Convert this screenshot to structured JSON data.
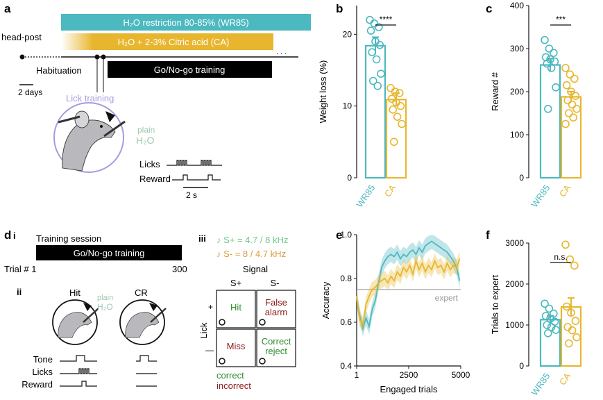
{
  "panel_a": {
    "label": "a",
    "bar_wr85": "H₂O restriction 80-85% (WR85)",
    "bar_ca": "H₂O + 2-3% Citric acid (CA)",
    "ellipsis": ". . .",
    "head_post": "head-post",
    "habituation": "Habituation",
    "training": "Go/No-go training",
    "scale": "2 days",
    "lick_training": "Lick training",
    "plain": "plain",
    "h2o": "H₂O",
    "licks": "Licks",
    "reward": "Reward",
    "timescale": "2 s",
    "colors": {
      "wr85": "#4cb8c0",
      "ca": "#e8b62e",
      "lick": "#a79be0"
    }
  },
  "panel_d": {
    "label": "d",
    "sub_i": "i",
    "sub_ii": "ii",
    "sub_iii": "iii",
    "session_title": "Training session",
    "training": "Go/No-go training",
    "trial_start": "Trial # 1",
    "trial_end": "300",
    "hit": "Hit",
    "cr": "CR",
    "plain": "plain",
    "h2o": "H₂O",
    "tone": "Tone",
    "licks": "Licks",
    "reward": "Reward",
    "splus": "♪ S+ = 4.7 / 8 kHz",
    "sminus": "♪ S- = 8 / 4.7 kHz",
    "signal": "Signal",
    "col_splus": "S+",
    "col_sminus": "S-",
    "lick": "Lick",
    "plus": "+",
    "minus": "—",
    "cell_hit": "Hit",
    "cell_fa1": "False",
    "cell_fa2": "alarm",
    "cell_miss": "Miss",
    "cell_cr1": "Correct",
    "cell_cr2": "reject",
    "correct": "correct",
    "incorrect": "incorrect",
    "colors": {
      "correct": "#2e8b2e",
      "incorrect": "#8b1a1a"
    }
  },
  "chart_data": [
    {
      "panel": "b",
      "type": "bar",
      "categories": [
        "WR85",
        "CA"
      ],
      "values": [
        18.4,
        10.9
      ],
      "error": [
        1.2,
        0.9
      ],
      "points": [
        [
          22,
          21.5,
          21,
          20.5,
          19,
          18.5,
          17.5,
          16.5,
          14.5,
          13.5,
          12.8
        ],
        [
          12.5,
          12,
          11.8,
          11,
          10.5,
          10,
          9.5,
          8.5,
          7.5,
          5
        ]
      ],
      "ylabel": "Weight loss (%)",
      "ylim": [
        0,
        24
      ],
      "yticks": [
        0,
        10,
        20
      ],
      "significance": "****"
    },
    {
      "panel": "c",
      "type": "bar",
      "categories": [
        "WR85",
        "CA"
      ],
      "values": [
        262,
        188
      ],
      "error": [
        15,
        12
      ],
      "points": [
        [
          320,
          300,
          290,
          280,
          275,
          270,
          265,
          255,
          210,
          160
        ],
        [
          255,
          240,
          230,
          215,
          200,
          190,
          180,
          170,
          160,
          150,
          140,
          125
        ]
      ],
      "ylabel": "Reward #",
      "ylim": [
        0,
        400
      ],
      "yticks": [
        0,
        100,
        200,
        300,
        400
      ],
      "significance": "***"
    },
    {
      "panel": "e",
      "type": "line",
      "xlabel": "Engaged trials",
      "ylabel": "Accuracy",
      "xlim": [
        1,
        5000
      ],
      "ylim": [
        0.4,
        1.0
      ],
      "xticks": [
        1,
        2500,
        5000
      ],
      "yticks": [
        0.4,
        0.6,
        0.8,
        1.0
      ],
      "threshold": 0.75,
      "threshold_label": "expert",
      "series": [
        {
          "x": [
            1,
            150,
            300,
            450,
            600,
            750,
            900,
            1050,
            1200,
            1350,
            1500,
            1650,
            1800,
            1950,
            2100,
            2250,
            2400,
            2550,
            2700,
            2850,
            3000,
            3150,
            3300,
            3450,
            3600,
            3750,
            3900,
            4050,
            4200,
            4350,
            4500,
            4650,
            4800,
            4950
          ],
          "y": [
            0.71,
            0.63,
            0.57,
            0.62,
            0.58,
            0.66,
            0.7,
            0.78,
            0.85,
            0.88,
            0.9,
            0.91,
            0.9,
            0.92,
            0.89,
            0.91,
            0.9,
            0.92,
            0.93,
            0.91,
            0.94,
            0.92,
            0.95,
            0.96,
            0.97,
            0.96,
            0.95,
            0.94,
            0.93,
            0.92,
            0.9,
            0.88,
            0.85,
            0.79
          ]
        },
        {
          "x": [
            1,
            150,
            300,
            450,
            600,
            750,
            900,
            1050,
            1200,
            1350,
            1500,
            1650,
            1800,
            1950,
            2100,
            2250,
            2400,
            2550,
            2700,
            2850,
            3000,
            3150,
            3300,
            3450,
            3600,
            3750,
            3900,
            4050,
            4200,
            4350,
            4500,
            4650,
            4800,
            4950
          ],
          "y": [
            0.72,
            0.61,
            0.59,
            0.68,
            0.72,
            0.75,
            0.76,
            0.78,
            0.79,
            0.8,
            0.78,
            0.81,
            0.79,
            0.83,
            0.81,
            0.85,
            0.83,
            0.86,
            0.82,
            0.88,
            0.84,
            0.87,
            0.83,
            0.86,
            0.84,
            0.88,
            0.85,
            0.86,
            0.83,
            0.87,
            0.84,
            0.86,
            0.85,
            0.89
          ]
        }
      ]
    },
    {
      "panel": "f",
      "type": "bar",
      "categories": [
        "WR85",
        "CA"
      ],
      "values": [
        1130,
        1440
      ],
      "error": [
        100,
        220
      ],
      "points": [
        [
          1520,
          1400,
          1280,
          1220,
          1150,
          1080,
          1000,
          950,
          880,
          800
        ],
        [
          2960,
          2600,
          2450,
          1450,
          1300,
          1100,
          950,
          870,
          700,
          550
        ]
      ],
      "ylabel": "Trials to expert",
      "ylim": [
        0,
        3000
      ],
      "yticks": [
        0,
        1000,
        2000,
        3000
      ],
      "significance": "n.s."
    }
  ]
}
